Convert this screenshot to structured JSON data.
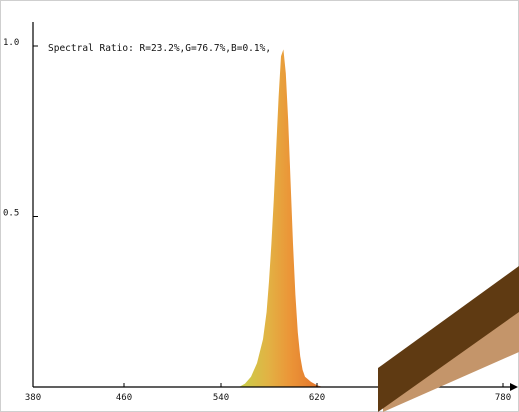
{
  "chart_data": {
    "type": "area",
    "annotation": "Spectral Ratio:  R=23.2%,G=76.7%,B=0.1%,",
    "x_ticks": [
      "380",
      "460",
      "540",
      "620",
      "780"
    ],
    "y_ticks": [
      "1.0",
      "0.5"
    ],
    "xlim": [
      380,
      780
    ],
    "ylim": [
      0,
      1.0
    ],
    "grid": false,
    "series": [
      {
        "x": [
          555,
          560,
          565,
          570,
          575,
          578,
          580,
          582,
          584,
          586,
          588,
          590,
          592,
          594,
          596,
          598,
          600,
          602,
          604,
          606,
          608,
          610,
          615,
          620,
          625
        ],
        "values": [
          0.0,
          0.01,
          0.03,
          0.07,
          0.14,
          0.22,
          0.31,
          0.42,
          0.55,
          0.7,
          0.85,
          0.97,
          0.99,
          0.92,
          0.78,
          0.6,
          0.42,
          0.27,
          0.16,
          0.09,
          0.05,
          0.03,
          0.015,
          0.005,
          0.0
        ]
      }
    ],
    "colors": {
      "fill_left": "#c8d04a",
      "fill_mid": "#e8a840",
      "fill_right": "#e47a2c",
      "axis": "#000000",
      "decor_dark": "#5f3a12",
      "decor_light": "#c4956a"
    }
  }
}
